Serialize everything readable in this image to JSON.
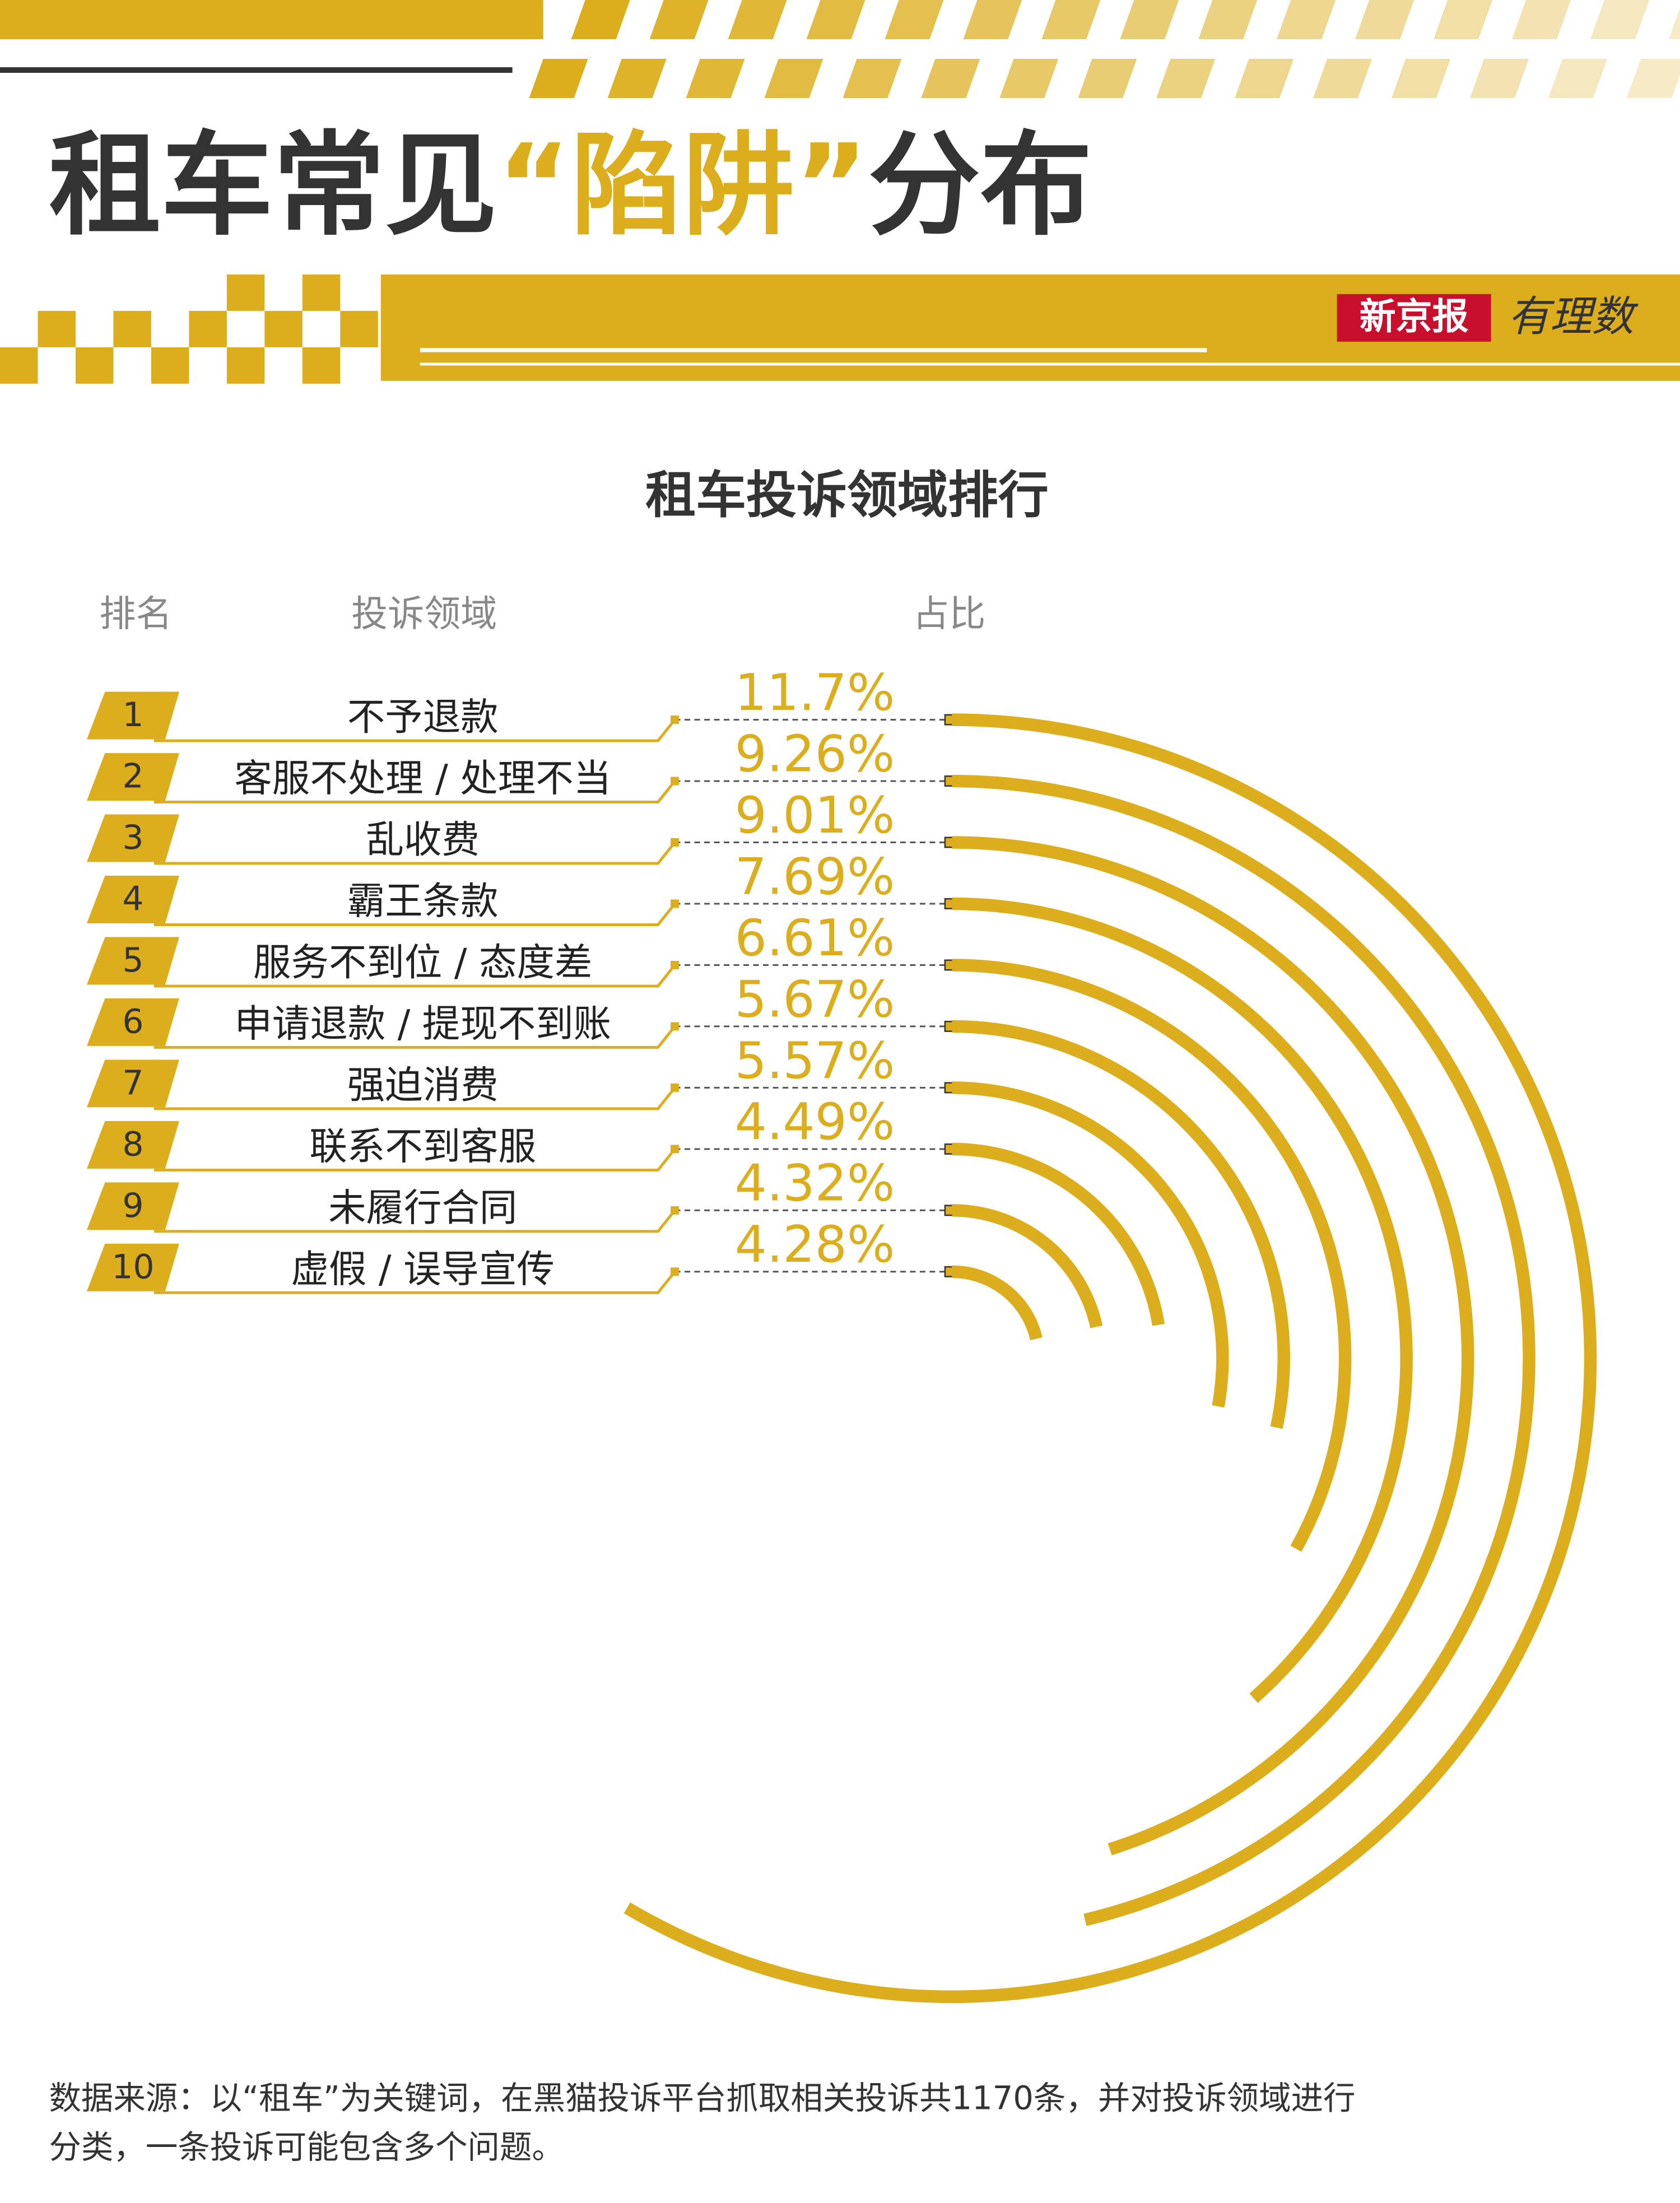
{
  "header": {
    "title": [
      "租车常见",
      "“陷阱”",
      "分布"
    ],
    "brand": "新京报",
    "column_brand": "有理数"
  },
  "chart_data": {
    "type": "radial-bar",
    "title": "租车投诉领域排行",
    "columns": [
      "排名",
      "投诉领域",
      "占比"
    ],
    "ranks": [
      1,
      2,
      3,
      4,
      5,
      6,
      7,
      8,
      9,
      10
    ],
    "categories": [
      "不予退款",
      "客服不处理 / 处理不当",
      "乱收费",
      "霸王条款",
      "服务不到位 / 态度差",
      "申请退款 / 提现不到账",
      "强迫消费",
      "联系不到客服",
      "未履行合同",
      "虚假 / 误导宣传"
    ],
    "values": [
      11.7,
      9.26,
      9.01,
      7.69,
      6.61,
      5.67,
      5.57,
      4.49,
      4.32,
      4.28
    ],
    "value_labels": [
      "11.7%",
      "9.26%",
      "9.01%",
      "7.69%",
      "6.61%",
      "5.67%",
      "5.57%",
      "4.49%",
      "4.32%",
      "4.28%"
    ],
    "color": "#dcae1d"
  },
  "footer": {
    "source": [
      "数据来源：以“租车”为关键词，在黑猫投诉平台抓取相关投诉共1170条，并对投诉领域进行",
      "分类，一条投诉可能包含多个问题。"
    ]
  }
}
